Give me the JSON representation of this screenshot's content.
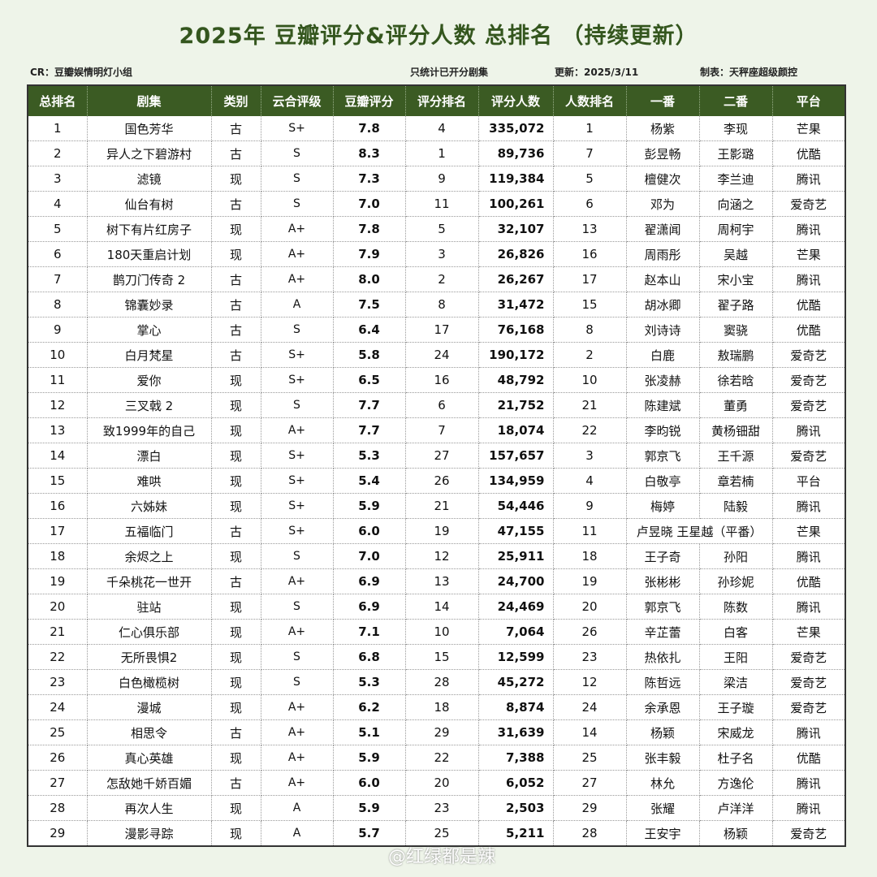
{
  "title": "2025年 豆瓣评分&评分人数 总排名 （持续更新）",
  "meta": {
    "cr": "CR：豆瓣娱情明灯小组",
    "note": "只统计已开分剧集",
    "updated": "更新：2025/3/11",
    "maker": "制表：天秤座超级颜控"
  },
  "watermark": "@红绿都是辣",
  "colors": {
    "header": "#3b5b23",
    "title": "#34561e",
    "background": "#eef4e9"
  },
  "columns": [
    "总排名",
    "剧集",
    "类别",
    "云合评级",
    "豆瓣评分",
    "评分排名",
    "评分人数",
    "人数排名",
    "一番",
    "二番",
    "平台"
  ],
  "rows": [
    [
      "1",
      "国色芳华",
      "古",
      "S+",
      "7.8",
      "4",
      "335,072",
      "1",
      "杨紫",
      "李现",
      "芒果"
    ],
    [
      "2",
      "异人之下碧游村",
      "古",
      "S",
      "8.3",
      "1",
      "89,736",
      "7",
      "彭昱畅",
      "王影璐",
      "优酷"
    ],
    [
      "3",
      "滤镜",
      "现",
      "S",
      "7.3",
      "9",
      "119,384",
      "5",
      "檀健次",
      "李兰迪",
      "腾讯"
    ],
    [
      "4",
      "仙台有树",
      "古",
      "S",
      "7.0",
      "11",
      "100,261",
      "6",
      "邓为",
      "向涵之",
      "爱奇艺"
    ],
    [
      "5",
      "树下有片红房子",
      "现",
      "A+",
      "7.8",
      "5",
      "32,107",
      "13",
      "翟潇闻",
      "周柯宇",
      "腾讯"
    ],
    [
      "6",
      "180天重启计划",
      "现",
      "A+",
      "7.9",
      "3",
      "26,826",
      "16",
      "周雨彤",
      "吴越",
      "芒果"
    ],
    [
      "7",
      "鹊刀门传奇 2",
      "古",
      "A+",
      "8.0",
      "2",
      "26,267",
      "17",
      "赵本山",
      "宋小宝",
      "腾讯"
    ],
    [
      "8",
      "锦囊妙录",
      "古",
      "A",
      "7.5",
      "8",
      "31,472",
      "15",
      "胡冰卿",
      "翟子路",
      "优酷"
    ],
    [
      "9",
      "掌心",
      "古",
      "S",
      "6.4",
      "17",
      "76,168",
      "8",
      "刘诗诗",
      "窦骁",
      "优酷"
    ],
    [
      "10",
      "白月梵星",
      "古",
      "S+",
      "5.8",
      "24",
      "190,172",
      "2",
      "白鹿",
      "敖瑞鹏",
      "爱奇艺"
    ],
    [
      "11",
      "爱你",
      "现",
      "S+",
      "6.5",
      "16",
      "48,792",
      "10",
      "张凌赫",
      "徐若晗",
      "爱奇艺"
    ],
    [
      "12",
      "三叉戟 2",
      "现",
      "S",
      "7.7",
      "6",
      "21,752",
      "21",
      "陈建斌",
      "董勇",
      "爱奇艺"
    ],
    [
      "13",
      "致1999年的自己",
      "现",
      "A+",
      "7.7",
      "7",
      "18,074",
      "22",
      "李昀锐",
      "黄杨钿甜",
      "腾讯"
    ],
    [
      "14",
      "漂白",
      "现",
      "S+",
      "5.3",
      "27",
      "157,657",
      "3",
      "郭京飞",
      "王千源",
      "爱奇艺"
    ],
    [
      "15",
      "难哄",
      "现",
      "S+",
      "5.4",
      "26",
      "134,959",
      "4",
      "白敬亭",
      "章若楠",
      "平台"
    ],
    [
      "16",
      "六姊妹",
      "现",
      "S+",
      "5.9",
      "21",
      "54,446",
      "9",
      "梅婷",
      "陆毅",
      "腾讯"
    ],
    [
      "17",
      "五福临门",
      "古",
      "S+",
      "6.0",
      "19",
      "47,155",
      "11",
      "卢昱晓 王星越（平番）",
      null,
      "芒果"
    ],
    [
      "18",
      "余烬之上",
      "现",
      "S",
      "7.0",
      "12",
      "25,911",
      "18",
      "王子奇",
      "孙阳",
      "腾讯"
    ],
    [
      "19",
      "千朵桃花一世开",
      "古",
      "A+",
      "6.9",
      "13",
      "24,700",
      "19",
      "张彬彬",
      "孙珍妮",
      "优酷"
    ],
    [
      "20",
      "驻站",
      "现",
      "S",
      "6.9",
      "14",
      "24,469",
      "20",
      "郭京飞",
      "陈数",
      "腾讯"
    ],
    [
      "21",
      "仁心俱乐部",
      "现",
      "A+",
      "7.1",
      "10",
      "7,064",
      "26",
      "辛芷蕾",
      "白客",
      "芒果"
    ],
    [
      "22",
      "无所畏惧2",
      "现",
      "S",
      "6.8",
      "15",
      "12,599",
      "23",
      "热依扎",
      "王阳",
      "爱奇艺"
    ],
    [
      "23",
      "白色橄榄树",
      "现",
      "S",
      "5.3",
      "28",
      "45,272",
      "12",
      "陈哲远",
      "梁洁",
      "爱奇艺"
    ],
    [
      "24",
      "漫城",
      "现",
      "A+",
      "6.2",
      "18",
      "8,874",
      "24",
      "余承恩",
      "王子璇",
      "爱奇艺"
    ],
    [
      "25",
      "相思令",
      "古",
      "A+",
      "5.1",
      "29",
      "31,639",
      "14",
      "杨颖",
      "宋威龙",
      "腾讯"
    ],
    [
      "26",
      "真心英雄",
      "现",
      "A+",
      "5.9",
      "22",
      "7,388",
      "25",
      "张丰毅",
      "杜子名",
      "优酷"
    ],
    [
      "27",
      "怎敌她千娇百媚",
      "古",
      "A+",
      "6.0",
      "20",
      "6,052",
      "27",
      "林允",
      "方逸伦",
      "腾讯"
    ],
    [
      "28",
      "再次人生",
      "现",
      "A",
      "5.9",
      "23",
      "2,503",
      "29",
      "张耀",
      "卢洋洋",
      "腾讯"
    ],
    [
      "29",
      "漫影寻踪",
      "现",
      "A",
      "5.7",
      "25",
      "5,211",
      "28",
      "王安宇",
      "杨颖",
      "爱奇艺"
    ]
  ]
}
